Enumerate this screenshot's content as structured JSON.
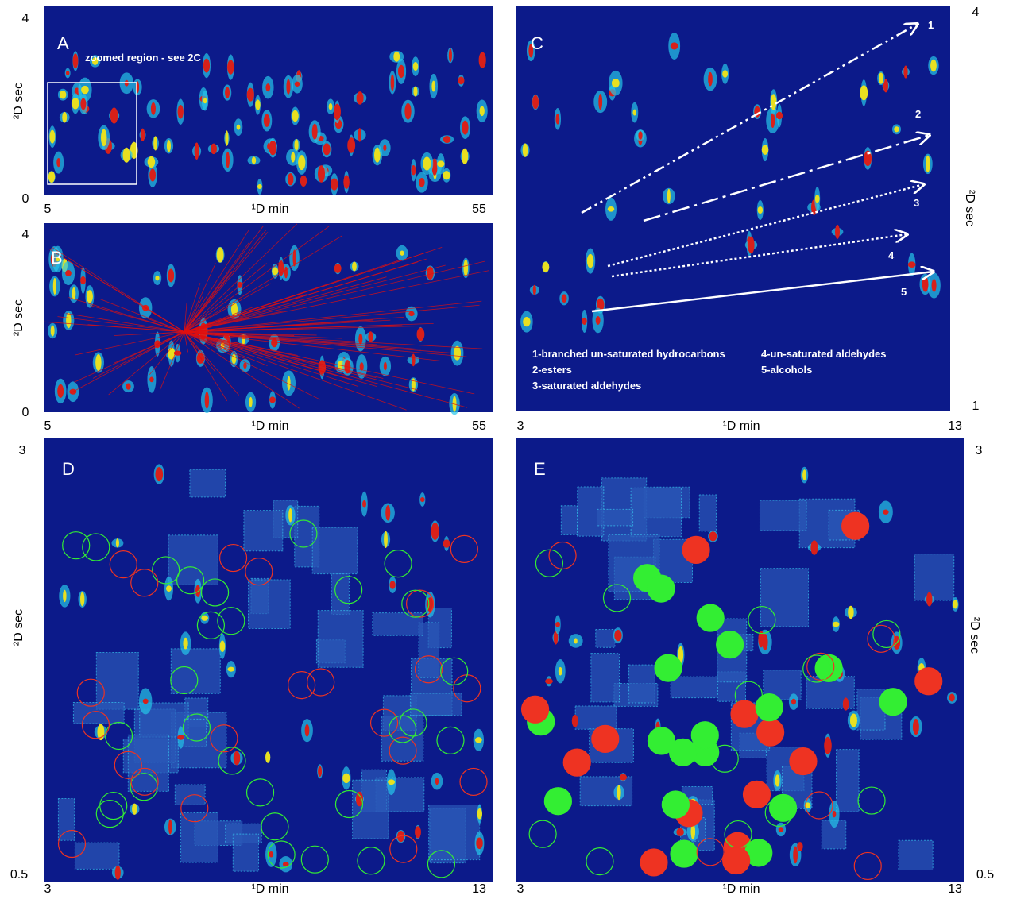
{
  "panels": [
    {
      "label": "A",
      "x_axis": {
        "title": "¹D min",
        "ticks": [
          "5",
          "55"
        ]
      },
      "y_axis": {
        "title": "²D sec",
        "ticks": [
          "4",
          "0"
        ]
      },
      "annotations": [
        "zoomed region - see 2C"
      ]
    },
    {
      "label": "B",
      "x_axis": {
        "title": "¹D min",
        "ticks": [
          "5",
          "55"
        ]
      },
      "y_axis": {
        "title": "²D sec",
        "ticks": [
          "4",
          "0"
        ]
      }
    },
    {
      "label": "C",
      "x_axis": {
        "title": "¹D min",
        "ticks": [
          "3",
          "13"
        ]
      },
      "y_axis": {
        "title": "²D sec",
        "ticks": [
          "4",
          "1"
        ]
      },
      "annotations": [
        "1",
        "2",
        "3",
        "4",
        "5",
        "1-branched un-saturated hydrocarbons",
        "2-esters",
        "3-saturated aldehydes",
        "4-un-saturated aldehydes",
        "5-alcohols"
      ]
    },
    {
      "label": "D",
      "x_axis": {
        "title": "¹D min",
        "ticks": [
          "3",
          "13"
        ]
      },
      "y_axis": {
        "title": "²D sec",
        "ticks": [
          "3",
          "0.5"
        ]
      }
    },
    {
      "label": "E",
      "x_axis": {
        "title": "¹D min",
        "ticks": [
          "3",
          "13"
        ]
      },
      "y_axis": {
        "title": "²D sec",
        "ticks": [
          "3",
          "0.5"
        ]
      }
    }
  ]
}
